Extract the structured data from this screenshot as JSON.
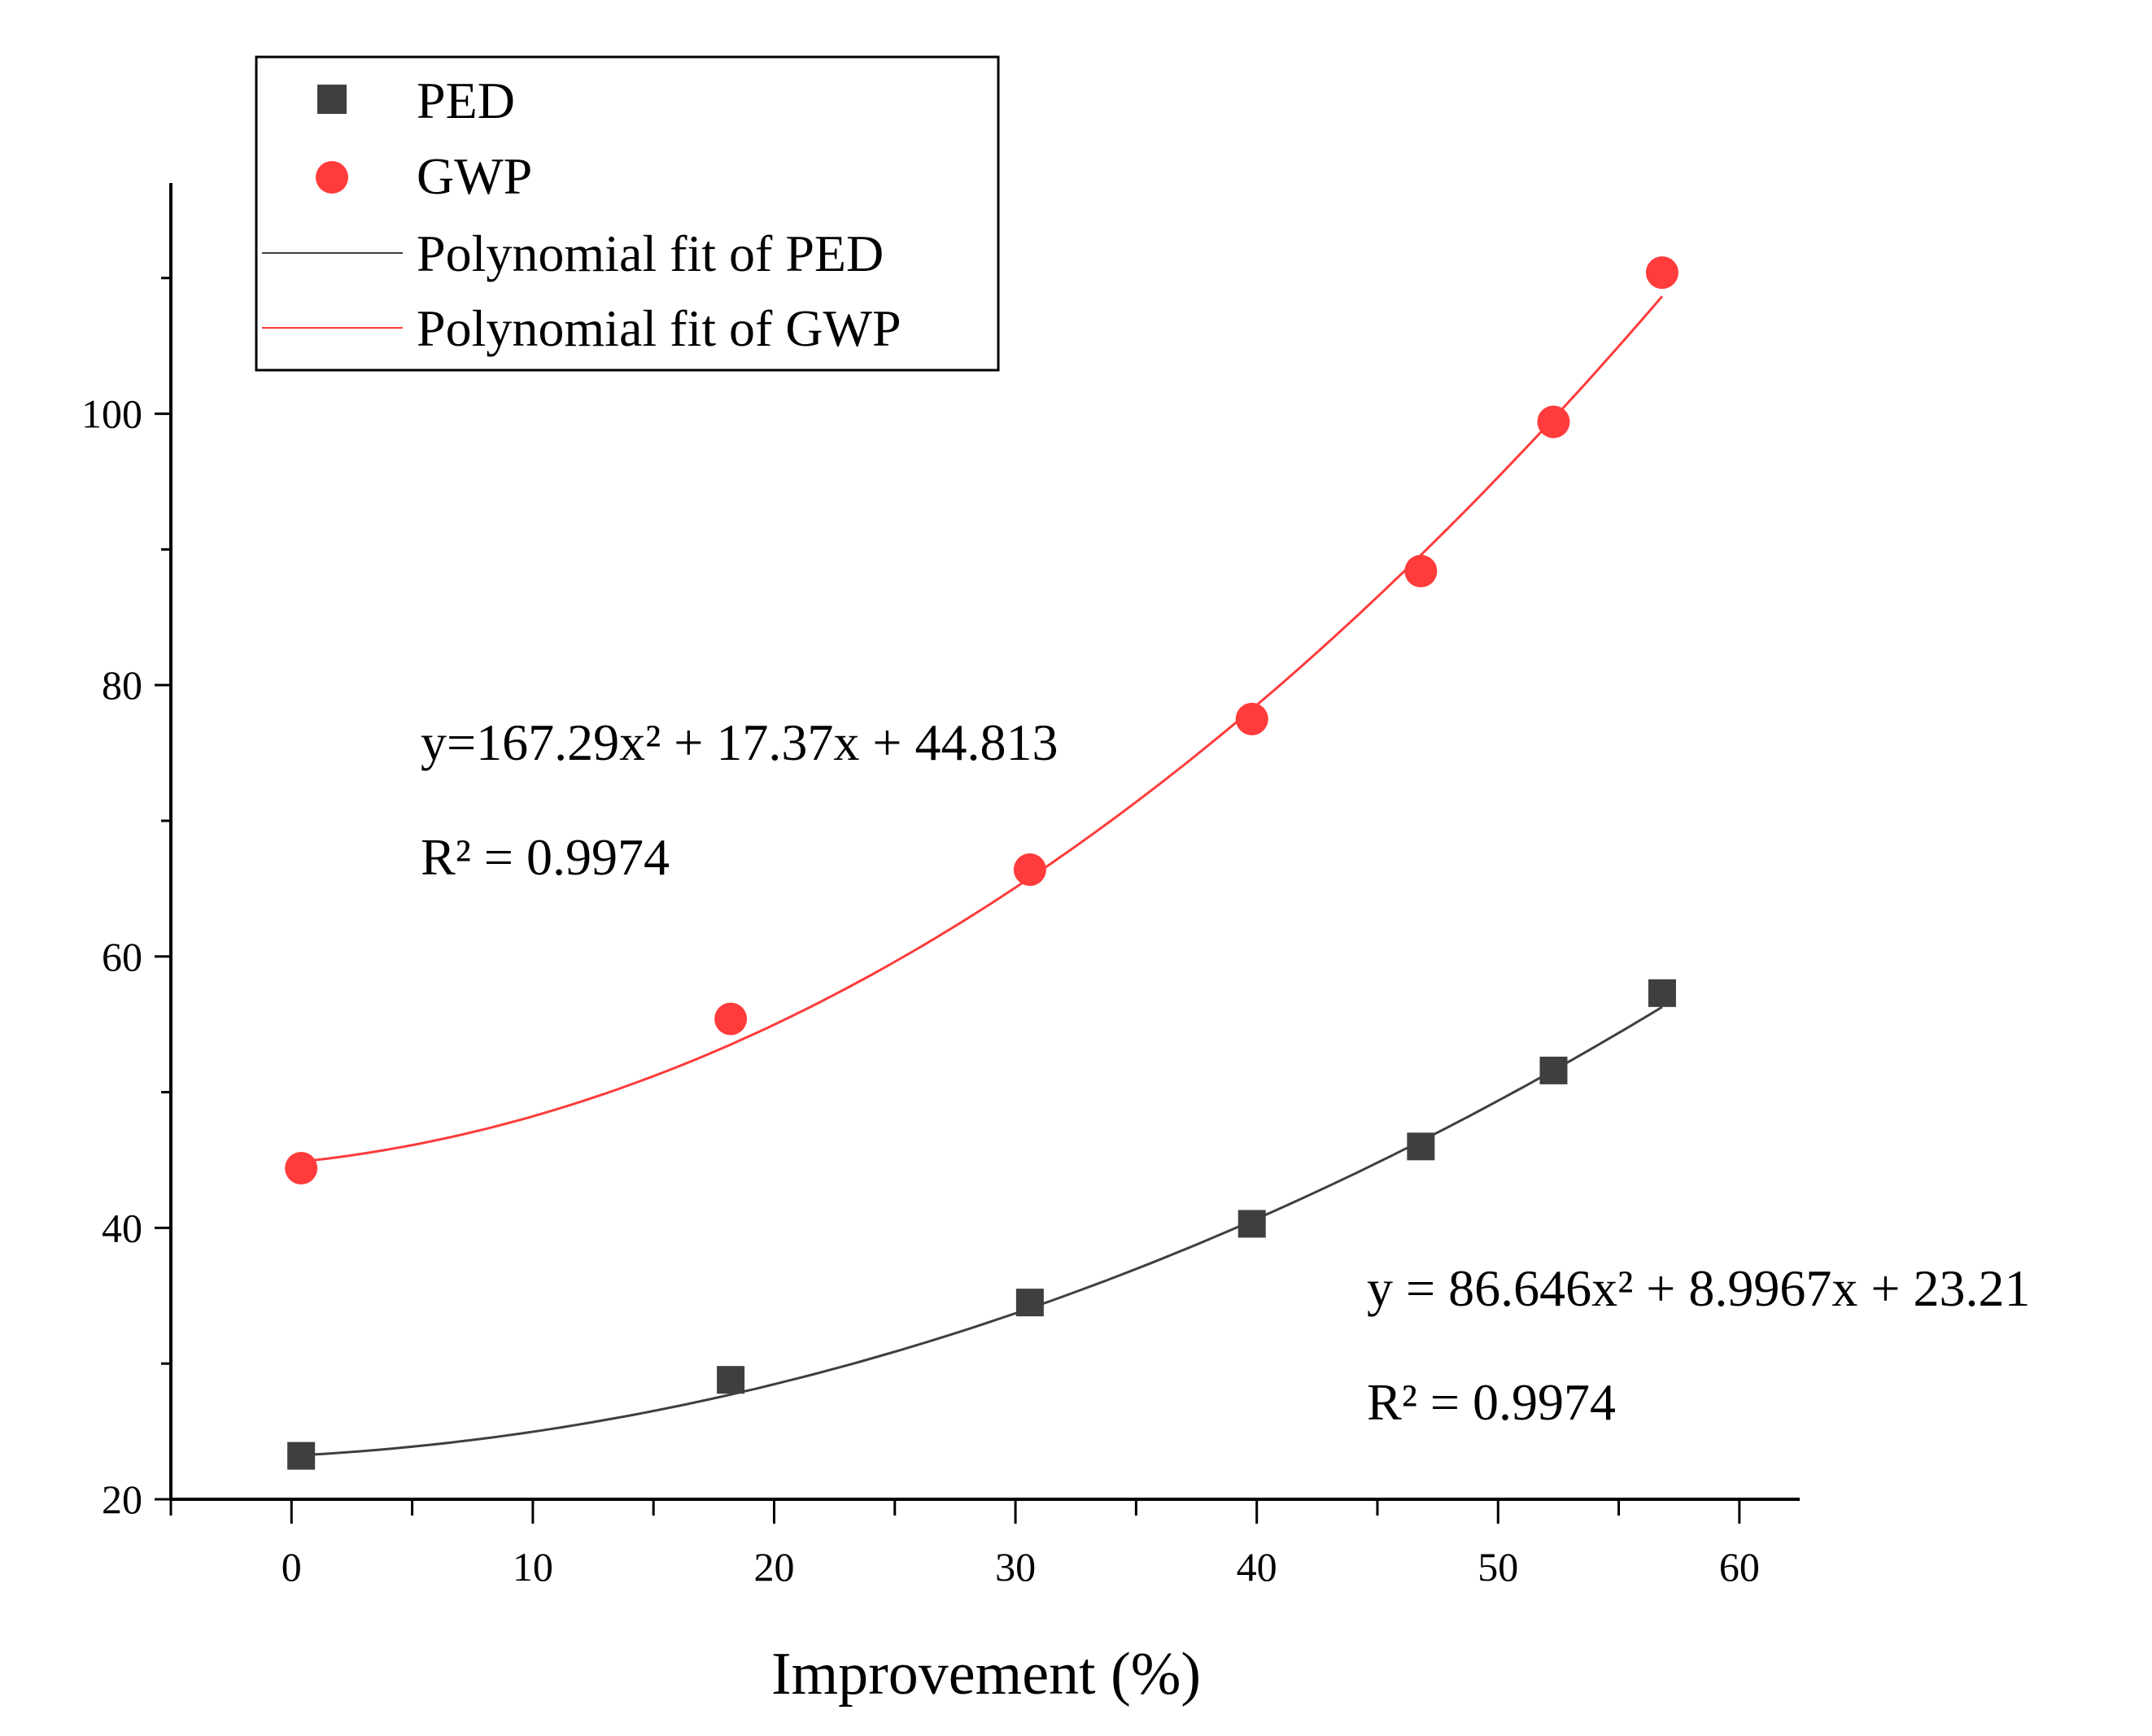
{
  "chart_data": {
    "type": "scatter",
    "title": "",
    "xlabel": "Improvement (%)",
    "ylabel": "",
    "xlim": [
      -5,
      62.5
    ],
    "ylim": [
      20,
      117
    ],
    "x_ticks": [
      0,
      10,
      20,
      30,
      40,
      50,
      60
    ],
    "y_ticks": [
      20,
      40,
      60,
      80,
      100
    ],
    "x_tick_labels": [
      "0",
      "10",
      "20",
      "30",
      "40",
      "50",
      "60"
    ],
    "y_tick_labels": [
      "20",
      "40",
      "60",
      "80",
      "100"
    ],
    "legend": {
      "placement": "top-left",
      "entries": [
        "PED",
        "GWP",
        "Polynomial fit of PED",
        "Polynomial fit of GWP"
      ]
    },
    "series": [
      {
        "name": "PED",
        "marker": "square",
        "color": "#3f3f3f",
        "x": [
          0.4,
          18.2,
          30.6,
          39.8,
          46.8,
          52.3,
          56.8
        ],
        "y": [
          23.2,
          28.8,
          34.5,
          40.3,
          46.0,
          51.6,
          57.3
        ]
      },
      {
        "name": "GWP",
        "marker": "circle",
        "color": "#ff3b3b",
        "x": [
          0.4,
          18.2,
          30.6,
          39.8,
          46.8,
          52.3,
          56.8
        ],
        "y": [
          44.4,
          55.4,
          66.4,
          77.5,
          88.4,
          99.4,
          110.4
        ]
      }
    ],
    "fits": [
      {
        "name": "Polynomial fit of PED",
        "color": "#3f3f3f",
        "coeffs": [
          86.646,
          8.9967,
          23.21
        ],
        "x_range": [
          0.4,
          56.8
        ],
        "equation": "y = 86.646x² + 8.9967x + 23.21",
        "r2": "R² = 0.9974"
      },
      {
        "name": "Polynomial fit of GWP",
        "color": "#ff3b3b",
        "coeffs": [
          167.29,
          17.37,
          44.813
        ],
        "x_range": [
          0.4,
          56.8
        ],
        "equation": "y=167.29x² + 17.37x + 44.813",
        "r2": "R² = 0.9974"
      }
    ]
  }
}
